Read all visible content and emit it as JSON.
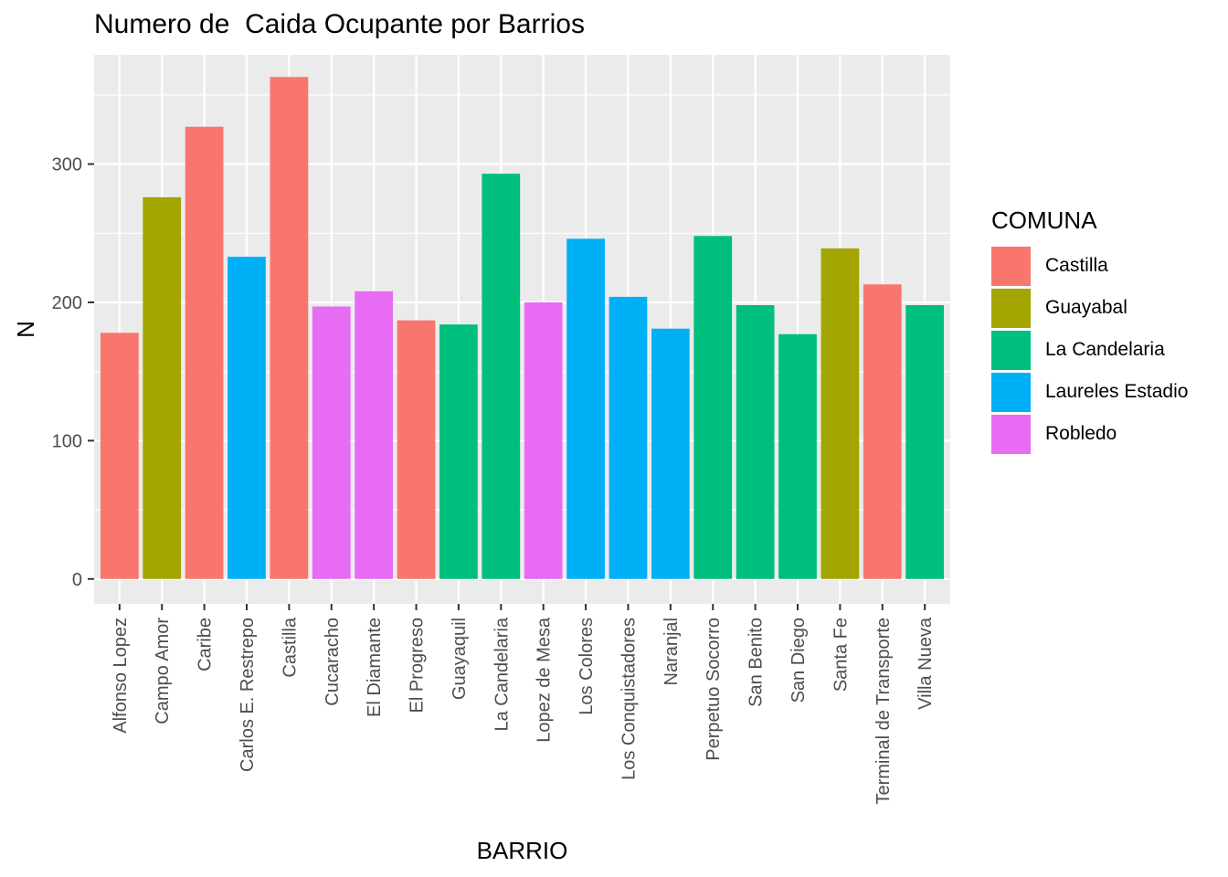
{
  "chart_data": {
    "type": "bar",
    "title": "Numero de  Caida Ocupante por Barrios",
    "xlabel": "BARRIO",
    "ylabel": "N",
    "ylim": [
      -18,
      379
    ],
    "yticks": [
      0,
      100,
      200,
      300
    ],
    "grid": true,
    "legend_position": "right",
    "legend_title": "COMUNA",
    "legend": [
      {
        "name": "Castilla",
        "color": "#F8766D"
      },
      {
        "name": "Guayabal",
        "color": "#A3A500"
      },
      {
        "name": "La Candelaria",
        "color": "#00BF7D"
      },
      {
        "name": "Laureles Estadio",
        "color": "#00B0F6"
      },
      {
        "name": "Robledo",
        "color": "#E76BF3"
      }
    ],
    "categories": [
      "Alfonso Lopez",
      "Campo Amor",
      "Caribe",
      "Carlos E. Restrepo",
      "Castilla",
      "Cucaracho",
      "El Diamante",
      "El Progreso",
      "Guayaquil",
      "La Candelaria",
      "Lopez de Mesa",
      "Los Colores",
      "Los Conquistadores",
      "Naranjal",
      "Perpetuo Socorro",
      "San Benito",
      "San Diego",
      "Santa Fe",
      "Terminal de Transporte",
      "Villa Nueva"
    ],
    "values": [
      178,
      276,
      327,
      233,
      363,
      197,
      208,
      187,
      184,
      293,
      200,
      246,
      204,
      181,
      248,
      198,
      177,
      239,
      213,
      198
    ],
    "groups": [
      "Castilla",
      "Guayabal",
      "Castilla",
      "Laureles Estadio",
      "Castilla",
      "Robledo",
      "Robledo",
      "Castilla",
      "La Candelaria",
      "La Candelaria",
      "Robledo",
      "Laureles Estadio",
      "Laureles Estadio",
      "Laureles Estadio",
      "La Candelaria",
      "La Candelaria",
      "La Candelaria",
      "Guayabal",
      "Castilla",
      "La Candelaria"
    ]
  }
}
